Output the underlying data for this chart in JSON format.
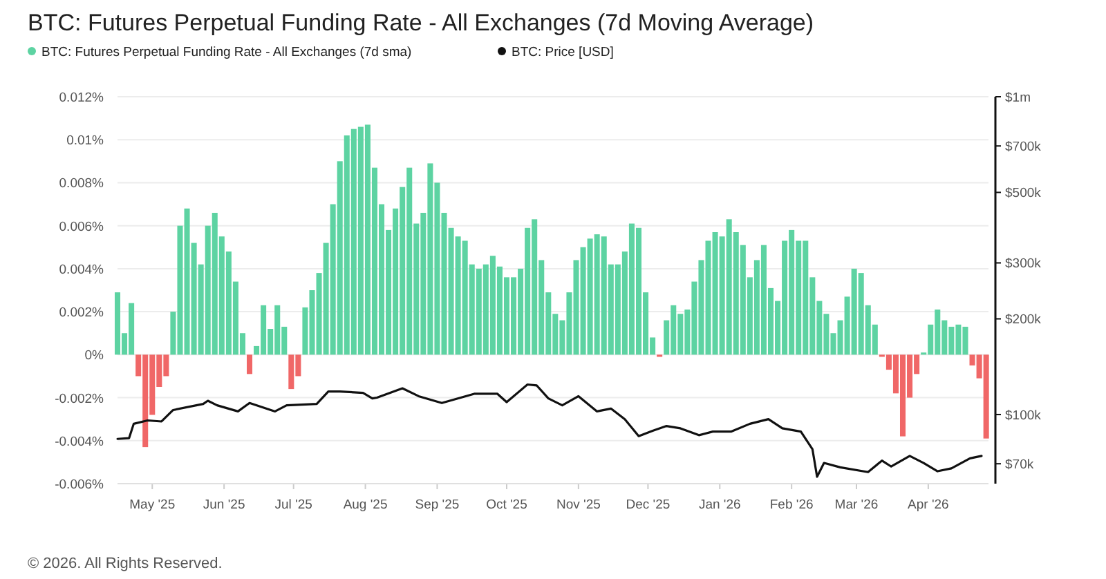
{
  "chart_data": {
    "type": "bar",
    "title": "BTC: Futures Perpetual Funding Rate - All Exchanges (7d Moving Average)",
    "annotations": [
      "© 2026. All Rights Reserved."
    ],
    "legend": "top left",
    "grid": "y",
    "xlim": [
      "2025-04-16",
      "2026-04-27"
    ],
    "xticks": [
      {
        "value": "2025-05-01",
        "label": "May '25"
      },
      {
        "value": "2025-06-01",
        "label": "Jun '25"
      },
      {
        "value": "2025-07-01",
        "label": "Jul '25"
      },
      {
        "value": "2025-08-01",
        "label": "Aug '25"
      },
      {
        "value": "2025-09-01",
        "label": "Sep '25"
      },
      {
        "value": "2025-10-01",
        "label": "Oct '25"
      },
      {
        "value": "2025-11-01",
        "label": "Nov '25"
      },
      {
        "value": "2025-12-01",
        "label": "Dec '25"
      },
      {
        "value": "2026-01-01",
        "label": "Jan '26"
      },
      {
        "value": "2026-02-01",
        "label": "Feb '26"
      },
      {
        "value": "2026-03-01",
        "label": "Mar '26"
      },
      {
        "value": "2026-04-01",
        "label": "Apr '26"
      }
    ],
    "ylim": [
      -0.006,
      0.012
    ],
    "yticks": [
      {
        "value": -0.006,
        "label": "-0.006%"
      },
      {
        "value": -0.004,
        "label": "-0.004%"
      },
      {
        "value": -0.002,
        "label": "-0.002%"
      },
      {
        "value": 0,
        "label": "0%"
      },
      {
        "value": 0.002,
        "label": "0.002%"
      },
      {
        "value": 0.004,
        "label": "0.004%"
      },
      {
        "value": 0.006,
        "label": "0.006%"
      },
      {
        "value": 0.008,
        "label": "0.008%"
      },
      {
        "value": 0.01,
        "label": "0.01%"
      },
      {
        "value": 0.012,
        "label": "0.012%"
      }
    ],
    "log": "y2",
    "y2lim": [
      60600,
      1000000
    ],
    "y2ticks": [
      {
        "value": 70000,
        "label": "$70k"
      },
      {
        "value": 100000,
        "label": "$100k"
      },
      {
        "value": 200000,
        "label": "$200k"
      },
      {
        "value": 300000,
        "label": "$300k"
      },
      {
        "value": 500000,
        "label": "$500k"
      },
      {
        "value": 700000,
        "label": "$700k"
      },
      {
        "value": 1000000,
        "label": "$1m"
      }
    ],
    "series": [
      {
        "name": "BTC: Futures Perpetual Funding Rate - All Exchanges (7d sma)",
        "color": "#5dd3a2",
        "x": [
          "2025-04-16",
          "2025-04-19",
          "2025-04-22",
          "2025-04-25",
          "2025-04-28",
          "2025-05-01",
          "2025-05-04",
          "2025-05-07",
          "2025-05-10",
          "2025-05-13",
          "2025-05-16",
          "2025-05-19",
          "2025-05-22",
          "2025-05-25",
          "2025-05-28",
          "2025-05-31",
          "2025-06-03",
          "2025-06-06",
          "2025-06-09",
          "2025-06-12",
          "2025-06-15",
          "2025-06-18",
          "2025-06-21",
          "2025-06-24",
          "2025-06-27",
          "2025-06-30",
          "2025-07-03",
          "2025-07-06",
          "2025-07-09",
          "2025-07-12",
          "2025-07-15",
          "2025-07-18",
          "2025-07-21",
          "2025-07-24",
          "2025-07-27",
          "2025-07-30",
          "2025-08-02",
          "2025-08-05",
          "2025-08-08",
          "2025-08-11",
          "2025-08-14",
          "2025-08-17",
          "2025-08-20",
          "2025-08-23",
          "2025-08-26",
          "2025-08-29",
          "2025-09-01",
          "2025-09-04",
          "2025-09-07",
          "2025-09-10",
          "2025-09-13",
          "2025-09-16",
          "2025-09-19",
          "2025-09-22",
          "2025-09-25",
          "2025-09-28",
          "2025-10-01",
          "2025-10-04",
          "2025-10-07",
          "2025-10-10",
          "2025-10-13",
          "2025-10-16",
          "2025-10-19",
          "2025-10-22",
          "2025-10-25",
          "2025-10-28",
          "2025-10-31",
          "2025-11-03",
          "2025-11-06",
          "2025-11-09",
          "2025-11-12",
          "2025-11-15",
          "2025-11-18",
          "2025-11-21",
          "2025-11-24",
          "2025-11-27",
          "2025-11-30",
          "2025-12-03",
          "2025-12-06",
          "2025-12-09",
          "2025-12-12",
          "2025-12-15",
          "2025-12-18",
          "2025-12-21",
          "2025-12-24",
          "2025-12-27",
          "2025-12-30",
          "2026-01-02",
          "2026-01-05",
          "2026-01-08",
          "2026-01-11",
          "2026-01-14",
          "2026-01-17",
          "2026-01-20",
          "2026-01-23",
          "2026-01-26",
          "2026-01-29",
          "2026-02-01",
          "2026-02-04",
          "2026-02-07",
          "2026-02-10",
          "2026-02-13",
          "2026-02-16",
          "2026-02-19",
          "2026-02-22",
          "2026-02-25",
          "2026-02-28",
          "2026-03-03",
          "2026-03-06",
          "2026-03-09",
          "2026-03-12",
          "2026-03-15",
          "2026-03-18",
          "2026-03-21",
          "2026-03-24",
          "2026-03-27",
          "2026-03-30",
          "2026-04-02",
          "2026-04-05",
          "2026-04-08",
          "2026-04-11",
          "2026-04-14",
          "2026-04-17",
          "2026-04-20",
          "2026-04-23",
          "2026-04-26"
        ],
        "values": [
          0.0029,
          0.001,
          0.0024,
          -0.001,
          -0.0043,
          -0.0028,
          -0.0015,
          -0.001,
          0.002,
          0.006,
          0.0068,
          0.0052,
          0.0042,
          0.006,
          0.0066,
          0.0055,
          0.0048,
          0.0034,
          0.001,
          -0.0009,
          0.0004,
          0.0023,
          0.0012,
          0.0023,
          0.0013,
          -0.0016,
          -0.001,
          0.0022,
          0.003,
          0.0038,
          0.0052,
          0.007,
          0.009,
          0.0102,
          0.0105,
          0.0106,
          0.0107,
          0.0087,
          0.007,
          0.0058,
          0.0068,
          0.0078,
          0.0087,
          0.0061,
          0.0066,
          0.0089,
          0.008,
          0.0066,
          0.0059,
          0.0055,
          0.0053,
          0.0042,
          0.004,
          0.0042,
          0.0046,
          0.0041,
          0.0036,
          0.0036,
          0.004,
          0.0059,
          0.0063,
          0.0044,
          0.0029,
          0.0019,
          0.0016,
          0.0029,
          0.0044,
          0.005,
          0.0054,
          0.0056,
          0.0055,
          0.0042,
          0.0042,
          0.0048,
          0.0061,
          0.0059,
          0.0029,
          0.0008,
          -0.0001,
          0.0016,
          0.0023,
          0.0019,
          0.0021,
          0.0034,
          0.0044,
          0.0053,
          0.0057,
          0.0055,
          0.0063,
          0.0057,
          0.0051,
          0.0036,
          0.0044,
          0.0051,
          0.0031,
          0.0025,
          0.0053,
          0.0058,
          0.0053,
          0.0053,
          0.0036,
          0.0025,
          0.0019,
          0.001,
          0.0016,
          0.0027,
          0.004,
          0.0038,
          0.0023,
          0.0014,
          -0.0001,
          -0.0007,
          -0.0018,
          -0.0038,
          -0.002,
          -0.0009,
          0.0001,
          0.0014,
          0.0021,
          0.0016,
          0.0013,
          0.0014,
          0.0013,
          -0.0005,
          -0.0011,
          -0.0039
        ],
        "colors": [
          "#5dd3a2",
          "#5dd3a2",
          "#5dd3a2",
          "#f06767",
          "#f06767",
          "#f06767",
          "#f06767",
          "#f06767",
          "#5dd3a2",
          "#5dd3a2",
          "#5dd3a2",
          "#5dd3a2",
          "#5dd3a2",
          "#5dd3a2",
          "#5dd3a2",
          "#5dd3a2",
          "#5dd3a2",
          "#5dd3a2",
          "#5dd3a2",
          "#f06767",
          "#5dd3a2",
          "#5dd3a2",
          "#5dd3a2",
          "#5dd3a2",
          "#5dd3a2",
          "#f06767",
          "#f06767",
          "#5dd3a2",
          "#5dd3a2",
          "#5dd3a2",
          "#5dd3a2",
          "#5dd3a2",
          "#5dd3a2",
          "#5dd3a2",
          "#5dd3a2",
          "#5dd3a2",
          "#5dd3a2",
          "#5dd3a2",
          "#5dd3a2",
          "#5dd3a2",
          "#5dd3a2",
          "#5dd3a2",
          "#5dd3a2",
          "#5dd3a2",
          "#5dd3a2",
          "#5dd3a2",
          "#5dd3a2",
          "#5dd3a2",
          "#5dd3a2",
          "#5dd3a2",
          "#5dd3a2",
          "#5dd3a2",
          "#5dd3a2",
          "#5dd3a2",
          "#5dd3a2",
          "#5dd3a2",
          "#5dd3a2",
          "#5dd3a2",
          "#5dd3a2",
          "#5dd3a2",
          "#5dd3a2",
          "#5dd3a2",
          "#5dd3a2",
          "#5dd3a2",
          "#5dd3a2",
          "#5dd3a2",
          "#5dd3a2",
          "#5dd3a2",
          "#5dd3a2",
          "#5dd3a2",
          "#5dd3a2",
          "#5dd3a2",
          "#5dd3a2",
          "#5dd3a2",
          "#5dd3a2",
          "#5dd3a2",
          "#5dd3a2",
          "#5dd3a2",
          "#f06767",
          "#5dd3a2",
          "#5dd3a2",
          "#5dd3a2",
          "#5dd3a2",
          "#5dd3a2",
          "#5dd3a2",
          "#5dd3a2",
          "#5dd3a2",
          "#5dd3a2",
          "#5dd3a2",
          "#5dd3a2",
          "#5dd3a2",
          "#5dd3a2",
          "#5dd3a2",
          "#5dd3a2",
          "#5dd3a2",
          "#5dd3a2",
          "#5dd3a2",
          "#5dd3a2",
          "#5dd3a2",
          "#5dd3a2",
          "#5dd3a2",
          "#5dd3a2",
          "#5dd3a2",
          "#5dd3a2",
          "#5dd3a2",
          "#5dd3a2",
          "#5dd3a2",
          "#5dd3a2",
          "#5dd3a2",
          "#5dd3a2",
          "#f06767",
          "#f06767",
          "#f06767",
          "#f06767",
          "#f06767",
          "#f06767",
          "#5dd3a2",
          "#5dd3a2",
          "#5dd3a2",
          "#5dd3a2",
          "#5dd3a2",
          "#5dd3a2",
          "#5dd3a2",
          "#f06767",
          "#f06767",
          "#f06767"
        ]
      },
      {
        "name": "BTC: Price [USD]",
        "type": "line",
        "axis": "y2",
        "color": "#111111",
        "x": [
          "2025-04-16",
          "2025-04-21",
          "2025-04-23",
          "2025-04-29",
          "2025-05-05",
          "2025-05-10",
          "2025-05-23",
          "2025-05-25",
          "2025-05-29",
          "2025-06-07",
          "2025-06-12",
          "2025-06-23",
          "2025-06-28",
          "2025-07-11",
          "2025-07-16",
          "2025-07-21",
          "2025-07-31",
          "2025-08-04",
          "2025-08-06",
          "2025-08-17",
          "2025-08-24",
          "2025-09-03",
          "2025-09-17",
          "2025-09-27",
          "2025-10-01",
          "2025-10-10",
          "2025-10-14",
          "2025-10-19",
          "2025-10-25",
          "2025-11-01",
          "2025-11-09",
          "2025-11-15",
          "2025-11-21",
          "2025-11-27",
          "2025-12-03",
          "2025-12-09",
          "2025-12-15",
          "2025-12-23",
          "2025-12-29",
          "2026-01-06",
          "2026-01-14",
          "2026-01-22",
          "2026-01-28",
          "2026-02-05",
          "2026-02-10",
          "2026-02-12",
          "2026-02-15",
          "2026-02-22",
          "2026-03-06",
          "2026-03-12",
          "2026-03-16",
          "2026-03-24",
          "2026-03-30",
          "2026-04-05",
          "2026-04-11",
          "2026-04-19",
          "2026-04-24"
        ],
        "values": [
          83800,
          84300,
          93500,
          95800,
          95100,
          103300,
          108000,
          110500,
          106900,
          102300,
          108700,
          102300,
          106900,
          108000,
          118200,
          118200,
          117000,
          112400,
          113000,
          120900,
          114200,
          108700,
          116200,
          116200,
          109400,
          124300,
          123400,
          112400,
          106900,
          114200,
          102300,
          104400,
          96700,
          85500,
          88900,
          92000,
          90500,
          86100,
          88400,
          88400,
          93500,
          96700,
          90500,
          88400,
          77800,
          63700,
          70400,
          68200,
          65900,
          71600,
          68600,
          74100,
          70400,
          66300,
          67700,
          72800,
          74100
        ]
      }
    ]
  }
}
